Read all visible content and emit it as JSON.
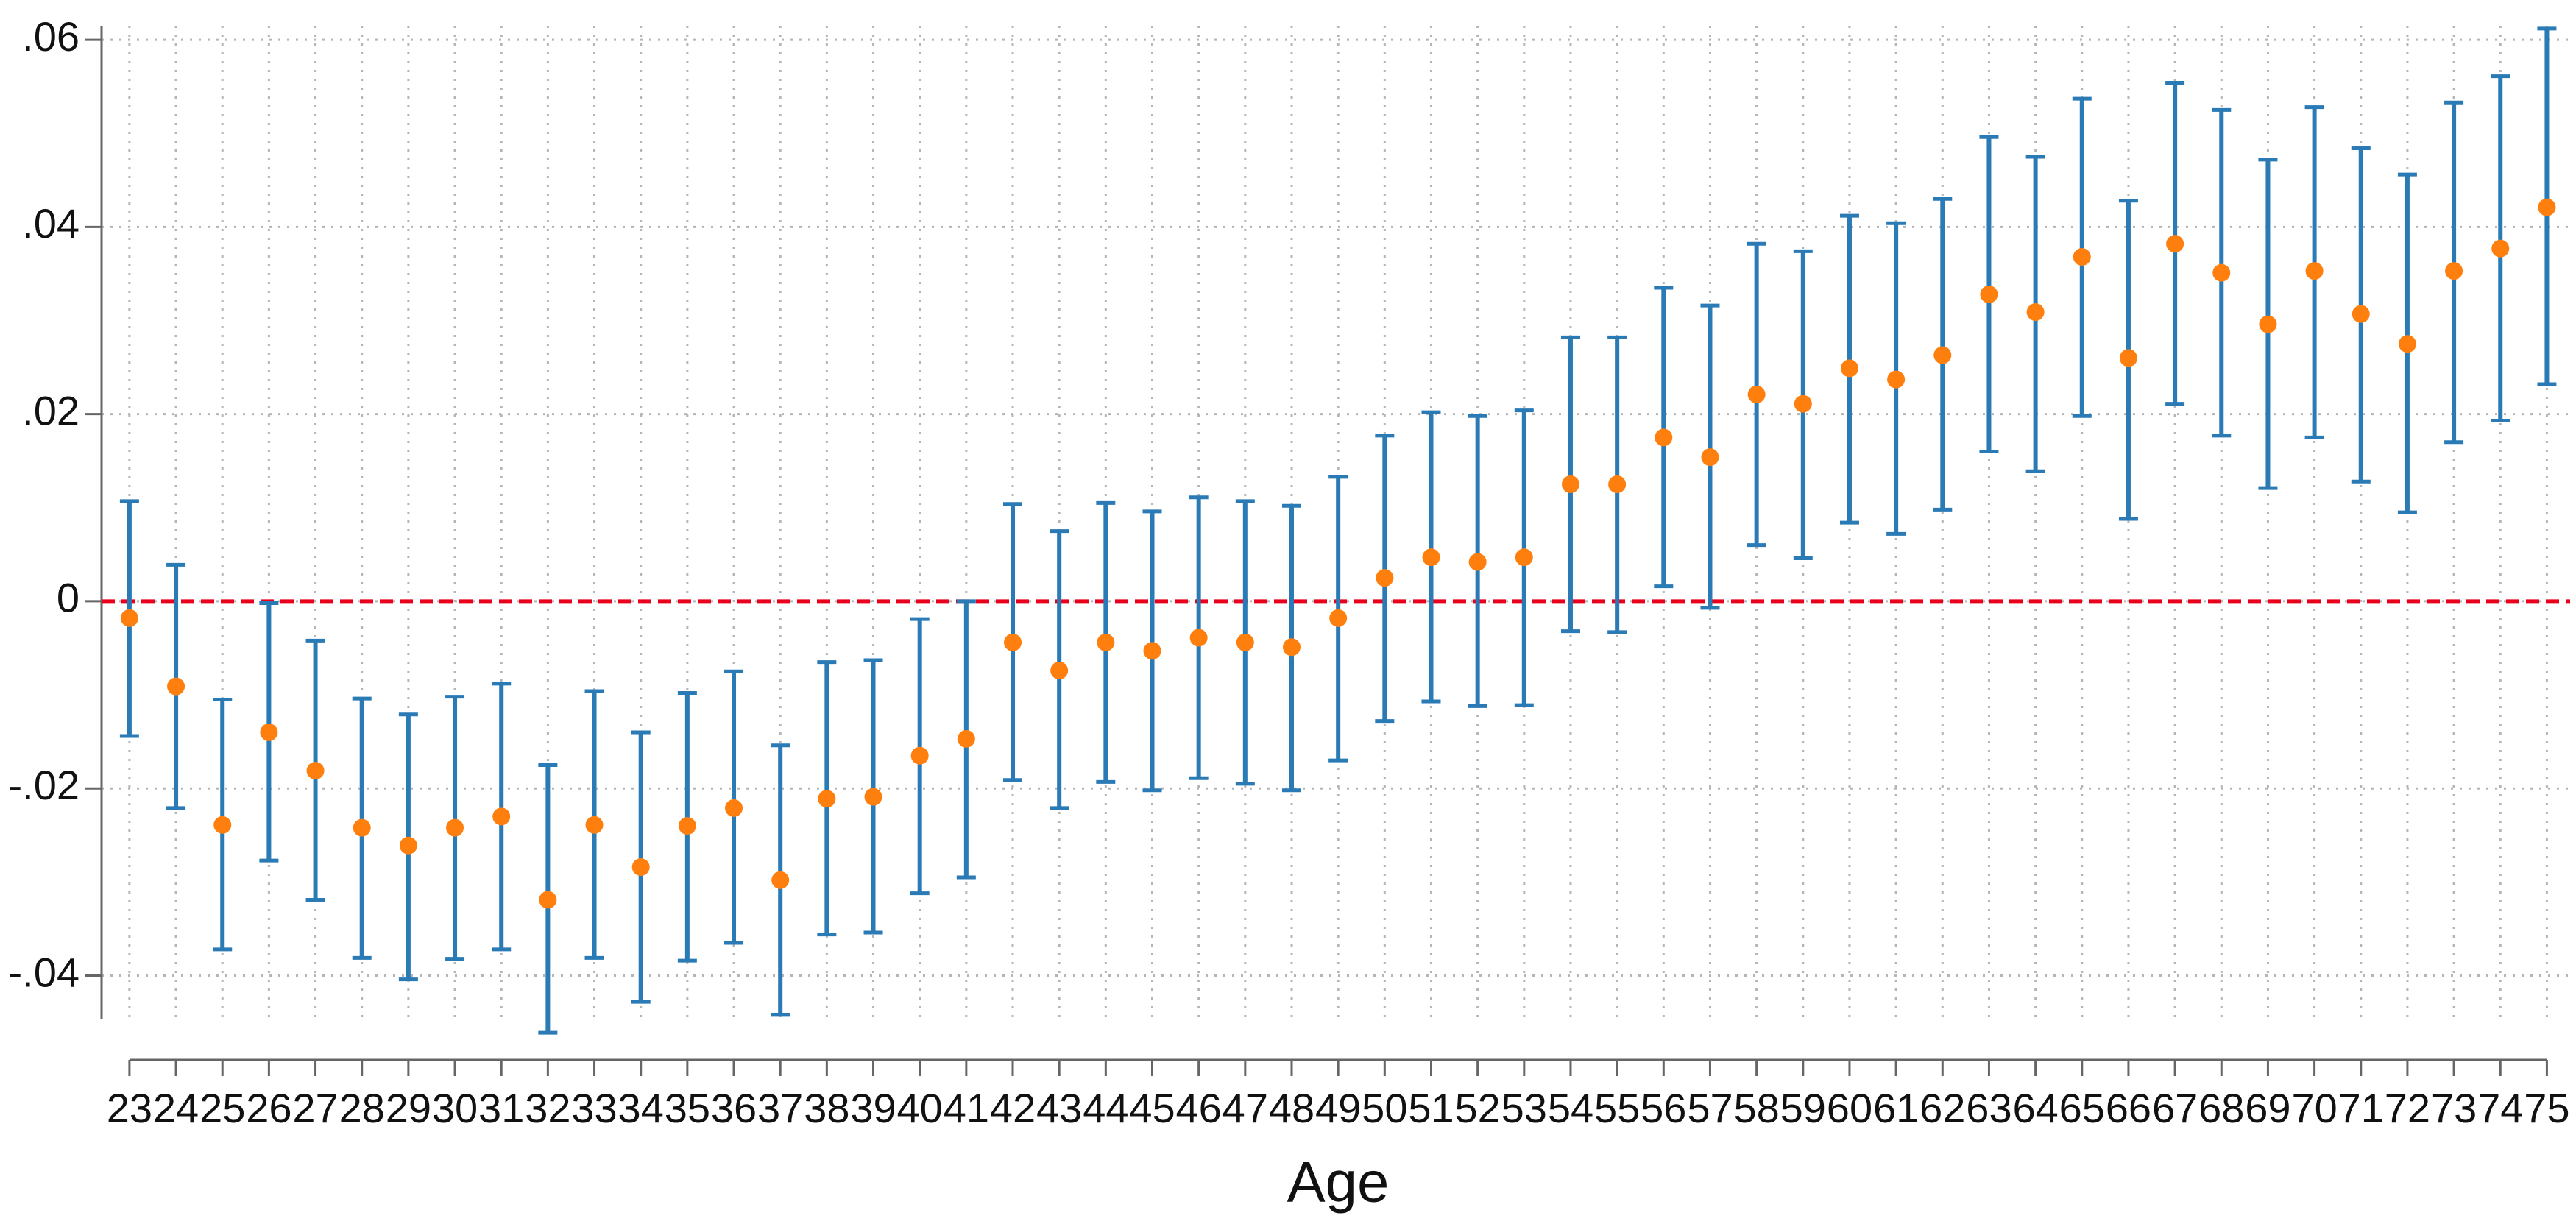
{
  "chart_data": {
    "type": "coefplot",
    "x_label": "Age",
    "x": [
      23,
      24,
      25,
      26,
      27,
      28,
      29,
      30,
      31,
      32,
      33,
      34,
      35,
      36,
      37,
      38,
      39,
      40,
      41,
      42,
      43,
      44,
      45,
      46,
      47,
      48,
      49,
      50,
      51,
      52,
      53,
      54,
      55,
      56,
      57,
      58,
      59,
      60,
      61,
      62,
      63,
      64,
      65,
      66,
      67,
      68,
      69,
      70,
      71,
      72,
      73,
      74,
      75
    ],
    "series": [
      {
        "color": "#ff7f0e",
        "error_color": "#2a7ab5",
        "values": [
          -0.0018,
          -0.0091,
          -0.0239,
          -0.014,
          -0.0181,
          -0.0242,
          -0.0261,
          -0.0242,
          -0.023,
          -0.0319,
          -0.0239,
          -0.0284,
          -0.024,
          -0.0221,
          -0.0298,
          -0.0211,
          -0.0209,
          -0.0165,
          -0.0147,
          -0.0044,
          -0.0074,
          -0.0044,
          -0.0053,
          -0.0039,
          -0.0044,
          -0.0049,
          -0.0018,
          0.0025,
          0.0047,
          0.0042,
          0.0047,
          0.0125,
          0.0125,
          0.0175,
          0.0154,
          0.0221,
          0.0211,
          0.0249,
          0.0237,
          0.0263,
          0.0328,
          0.0309,
          0.0368,
          0.026,
          0.0382,
          0.0351,
          0.0296,
          0.0353,
          0.0307,
          0.0275,
          0.0353,
          0.0377,
          0.0421
        ],
        "ci_low": [
          -0.0144,
          -0.0221,
          -0.0372,
          -0.0277,
          -0.0319,
          -0.0381,
          -0.0404,
          -0.0382,
          -0.0372,
          -0.0461,
          -0.0381,
          -0.0428,
          -0.0384,
          -0.0365,
          -0.0442,
          -0.0356,
          -0.0354,
          -0.0312,
          -0.0295,
          -0.0191,
          -0.0221,
          -0.0193,
          -0.0202,
          -0.0189,
          -0.0195,
          -0.0202,
          -0.017,
          -0.0128,
          -0.0107,
          -0.0112,
          -0.0111,
          -0.0032,
          -0.0033,
          0.0016,
          -0.0007,
          0.006,
          0.0046,
          0.0084,
          0.0072,
          0.0098,
          0.016,
          0.0139,
          0.0198,
          0.0088,
          0.0211,
          0.0177,
          0.0121,
          0.0175,
          0.0128,
          0.0095,
          0.017,
          0.0193,
          0.0232
        ],
        "ci_high": [
          0.0107,
          0.0039,
          -0.0105,
          -0.0002,
          -0.0042,
          -0.0104,
          -0.0121,
          -0.0102,
          -0.0088,
          -0.0175,
          -0.0096,
          -0.014,
          -0.0098,
          -0.0075,
          -0.0154,
          -0.0065,
          -0.0063,
          -0.0019,
          0,
          0.0104,
          0.0075,
          0.0105,
          0.0096,
          0.0111,
          0.0107,
          0.0102,
          0.0133,
          0.0177,
          0.0202,
          0.0198,
          0.0204,
          0.0282,
          0.0282,
          0.0335,
          0.0316,
          0.0382,
          0.0374,
          0.0412,
          0.0404,
          0.043,
          0.0496,
          0.0475,
          0.0537,
          0.0428,
          0.0554,
          0.0525,
          0.0472,
          0.0528,
          0.0484,
          0.0456,
          0.0533,
          0.0561,
          0.0612
        ]
      }
    ],
    "xlim": [
      22.4,
      75.5
    ],
    "xticks": [
      23,
      24,
      25,
      26,
      27,
      28,
      29,
      30,
      31,
      32,
      33,
      34,
      35,
      36,
      37,
      38,
      39,
      40,
      41,
      42,
      43,
      44,
      45,
      46,
      47,
      48,
      49,
      50,
      51,
      52,
      53,
      54,
      55,
      56,
      57,
      58,
      59,
      60,
      61,
      62,
      63,
      64,
      65,
      66,
      67,
      68,
      69,
      70,
      71,
      72,
      73,
      74,
      75
    ],
    "ylim": [
      -0.0446,
      0.0615
    ],
    "yticks": [
      {
        "value": -0.04,
        "label": "-.04"
      },
      {
        "value": -0.02,
        "label": "-.02"
      },
      0,
      {
        "value": 0.02,
        "label": ".02"
      },
      {
        "value": 0.04,
        "label": ".04"
      },
      {
        "value": 0.06,
        "label": ".06"
      }
    ],
    "reference_line": {
      "value": 0,
      "color": "#e8001c"
    },
    "grid": true
  }
}
